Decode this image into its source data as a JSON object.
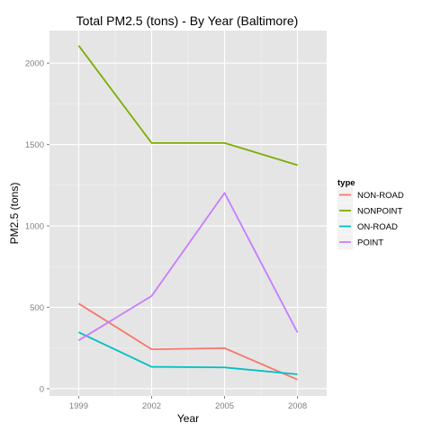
{
  "chart_data": {
    "type": "line",
    "title": "Total PM2.5 (tons) - By Year (Baltimore)",
    "xlabel": "Year",
    "ylabel": "PM2.5 (tons)",
    "x": [
      1999,
      2002,
      2005,
      2008
    ],
    "x_tick_labels": [
      "1999",
      "2002",
      "2005",
      "2008"
    ],
    "xlim": [
      1997.8,
      2009.2
    ],
    "ylim": [
      -45,
      2200
    ],
    "y_ticks": [
      0,
      500,
      1000,
      1500,
      2000
    ],
    "y_tick_labels": [
      "0",
      "500",
      "1000",
      "1500",
      "2000"
    ],
    "grid": true,
    "legend": {
      "title": "type",
      "placement": "right"
    },
    "series": [
      {
        "name": "NON-ROAD",
        "color": "#F8766D",
        "values": [
          522.9,
          241.9,
          248.9,
          55.8
        ]
      },
      {
        "name": "NONPOINT",
        "color": "#7CAE00",
        "values": [
          2107.6,
          1509.5,
          1509.5,
          1373.2
        ]
      },
      {
        "name": "ON-ROAD",
        "color": "#00BFC4",
        "values": [
          346.8,
          134.3,
          130.4,
          88.3
        ]
      },
      {
        "name": "POINT",
        "color": "#C77CFF",
        "values": [
          296.8,
          569.3,
          1202.5,
          344.98
        ]
      }
    ]
  }
}
